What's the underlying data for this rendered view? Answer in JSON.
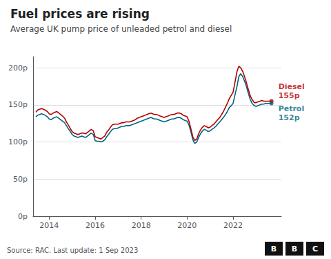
{
  "chart_data": {
    "type": "line",
    "title": "Fuel prices are rising",
    "subtitle": "Average UK pump price of unleaded petrol and diesel",
    "source": "Source: RAC. Last update: 1 Sep 2023",
    "logo": [
      "B",
      "B",
      "C"
    ],
    "xlim": [
      2013.3,
      2024.1
    ],
    "xticks": [
      2014,
      2016,
      2018,
      2020,
      2022
    ],
    "ylim": [
      0,
      215
    ],
    "yticks": [
      {
        "value": 0,
        "label": "0p"
      },
      {
        "value": 50,
        "label": "50p"
      },
      {
        "value": 100,
        "label": "100p"
      },
      {
        "value": 150,
        "label": "150p"
      },
      {
        "value": 200,
        "label": "200p"
      }
    ],
    "grid": true,
    "x": [
      2013.42,
      2013.5,
      2013.58,
      2013.67,
      2013.75,
      2013.83,
      2013.92,
      2014.0,
      2014.08,
      2014.17,
      2014.25,
      2014.33,
      2014.42,
      2014.5,
      2014.58,
      2014.67,
      2014.75,
      2014.83,
      2014.92,
      2015.0,
      2015.08,
      2015.17,
      2015.25,
      2015.33,
      2015.42,
      2015.5,
      2015.58,
      2015.67,
      2015.75,
      2015.83,
      2015.92,
      2016.0,
      2016.08,
      2016.17,
      2016.25,
      2016.33,
      2016.42,
      2016.5,
      2016.58,
      2016.67,
      2016.75,
      2016.83,
      2016.92,
      2017.0,
      2017.08,
      2017.17,
      2017.25,
      2017.33,
      2017.42,
      2017.5,
      2017.58,
      2017.67,
      2017.75,
      2017.83,
      2017.92,
      2018.0,
      2018.08,
      2018.17,
      2018.25,
      2018.33,
      2018.42,
      2018.5,
      2018.58,
      2018.67,
      2018.75,
      2018.83,
      2018.92,
      2019.0,
      2019.08,
      2019.17,
      2019.25,
      2019.33,
      2019.42,
      2019.5,
      2019.58,
      2019.67,
      2019.75,
      2019.83,
      2019.92,
      2020.0,
      2020.08,
      2020.17,
      2020.25,
      2020.33,
      2020.42,
      2020.5,
      2020.58,
      2020.67,
      2020.75,
      2020.83,
      2020.92,
      2021.0,
      2021.08,
      2021.17,
      2021.25,
      2021.33,
      2021.42,
      2021.5,
      2021.58,
      2021.67,
      2021.75,
      2021.83,
      2021.92,
      2022.0,
      2022.08,
      2022.17,
      2022.25,
      2022.33,
      2022.42,
      2022.5,
      2022.58,
      2022.67,
      2022.75,
      2022.83,
      2022.92,
      2023.0,
      2023.08,
      2023.17,
      2023.25,
      2023.33,
      2023.42,
      2023.5,
      2023.58,
      2023.67
    ],
    "series": [
      {
        "color": "#006680",
        "values": [
          134,
          136,
          137,
          138,
          137,
          136,
          134,
          131,
          130,
          132,
          133,
          134,
          132,
          130,
          128,
          126,
          122,
          118,
          114,
          110,
          108,
          107,
          106,
          107,
          108,
          107,
          106,
          108,
          110,
          112,
          110,
          102,
          101,
          101,
          100,
          101,
          103,
          107,
          110,
          114,
          117,
          118,
          118,
          119,
          120,
          121,
          121,
          122,
          122,
          122,
          123,
          124,
          125,
          126,
          127,
          128,
          129,
          130,
          131,
          132,
          133,
          132,
          131,
          131,
          130,
          129,
          128,
          127,
          128,
          129,
          130,
          131,
          131,
          132,
          133,
          133,
          132,
          130,
          129,
          128,
          123,
          113,
          103,
          98,
          100,
          106,
          111,
          115,
          117,
          116,
          114,
          115,
          117,
          119,
          121,
          124,
          127,
          130,
          133,
          137,
          141,
          146,
          149,
          152,
          163,
          175,
          188,
          192,
          188,
          182,
          175,
          165,
          157,
          152,
          149,
          148,
          149,
          150,
          151,
          151,
          152,
          152,
          152,
          152
        ]
      },
      {
        "color": "#b30000",
        "values": [
          140,
          143,
          144,
          145,
          144,
          143,
          141,
          138,
          137,
          139,
          140,
          141,
          139,
          137,
          135,
          132,
          127,
          123,
          118,
          114,
          112,
          111,
          110,
          111,
          112,
          112,
          111,
          113,
          115,
          117,
          115,
          107,
          106,
          105,
          104,
          106,
          108,
          113,
          116,
          120,
          123,
          124,
          124,
          124,
          125,
          126,
          126,
          127,
          127,
          127,
          128,
          129,
          130,
          132,
          133,
          134,
          135,
          136,
          137,
          138,
          139,
          138,
          137,
          137,
          136,
          135,
          134,
          133,
          134,
          135,
          136,
          137,
          137,
          138,
          139,
          139,
          138,
          136,
          135,
          134,
          128,
          117,
          107,
          102,
          104,
          111,
          116,
          120,
          122,
          121,
          119,
          120,
          122,
          124,
          127,
          130,
          133,
          137,
          141,
          147,
          152,
          158,
          163,
          167,
          180,
          195,
          202,
          200,
          195,
          188,
          180,
          170,
          162,
          157,
          153,
          153,
          154,
          155,
          156,
          155,
          155,
          155,
          155,
          155
        ]
      }
    ],
    "annotations": [
      {
        "text": "Diesel\n155p",
        "x": 2023.67,
        "y": 155,
        "color": "#b30000"
      },
      {
        "text": "Petrol\n152p",
        "x": 2023.67,
        "y": 152,
        "color": "#006680"
      }
    ]
  }
}
